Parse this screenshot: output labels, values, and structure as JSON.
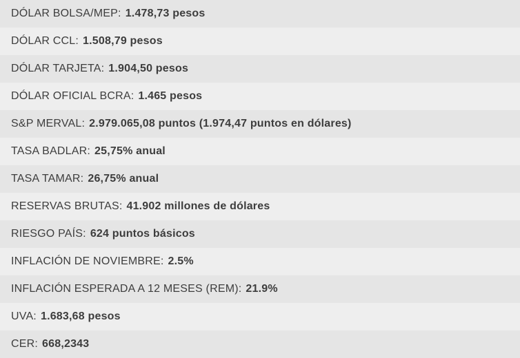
{
  "colors": {
    "row_dark": "#e5e5e5",
    "row_light": "#eeeeee",
    "text": "#3d3d3d"
  },
  "indicators": [
    {
      "label": "DÓLAR BOLSA/MEP:",
      "value": "1.478,73 pesos"
    },
    {
      "label": "DÓLAR CCL:",
      "value": "1.508,79 pesos"
    },
    {
      "label": "DÓLAR TARJETA:",
      "value": "1.904,50 pesos"
    },
    {
      "label": "DÓLAR OFICIAL BCRA:",
      "value": "1.465 pesos"
    },
    {
      "label": "S&P MERVAL:",
      "value": "2.979.065,08 puntos (1.974,47 puntos en dólares)"
    },
    {
      "label": "TASA BADLAR:",
      "value": "25,75% anual"
    },
    {
      "label": "TASA TAMAR:",
      "value": "26,75% anual"
    },
    {
      "label": "RESERVAS BRUTAS:",
      "value": "41.902 millones de dólares"
    },
    {
      "label": "RIESGO PAÍS:",
      "value": "624 puntos básicos"
    },
    {
      "label": "INFLACIÓN DE NOVIEMBRE:",
      "value": "2.5%"
    },
    {
      "label": "INFLACIÓN ESPERADA A 12 MESES (REM):",
      "value": "21.9%"
    },
    {
      "label": "UVA:",
      "value": "1.683,68 pesos"
    },
    {
      "label": "CER:",
      "value": "668,2343"
    }
  ]
}
